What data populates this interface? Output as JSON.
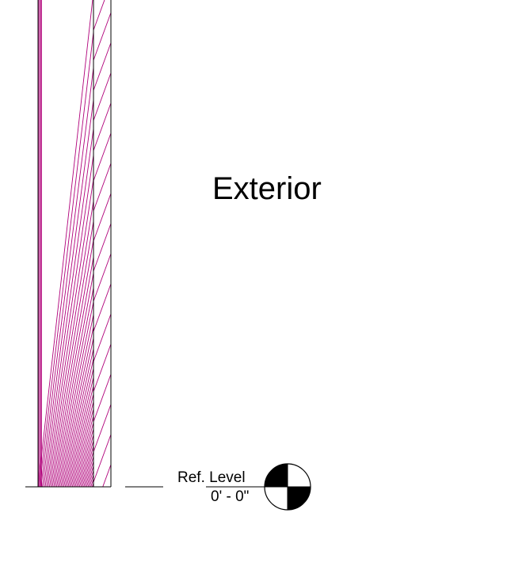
{
  "annotation": {
    "region_label": "Exterior"
  },
  "level_marker": {
    "name": "Ref. Level",
    "elevation": "0' - 0\""
  },
  "colors": {
    "hatch": "#b0007a",
    "line": "#000000",
    "background": "#ffffff"
  }
}
